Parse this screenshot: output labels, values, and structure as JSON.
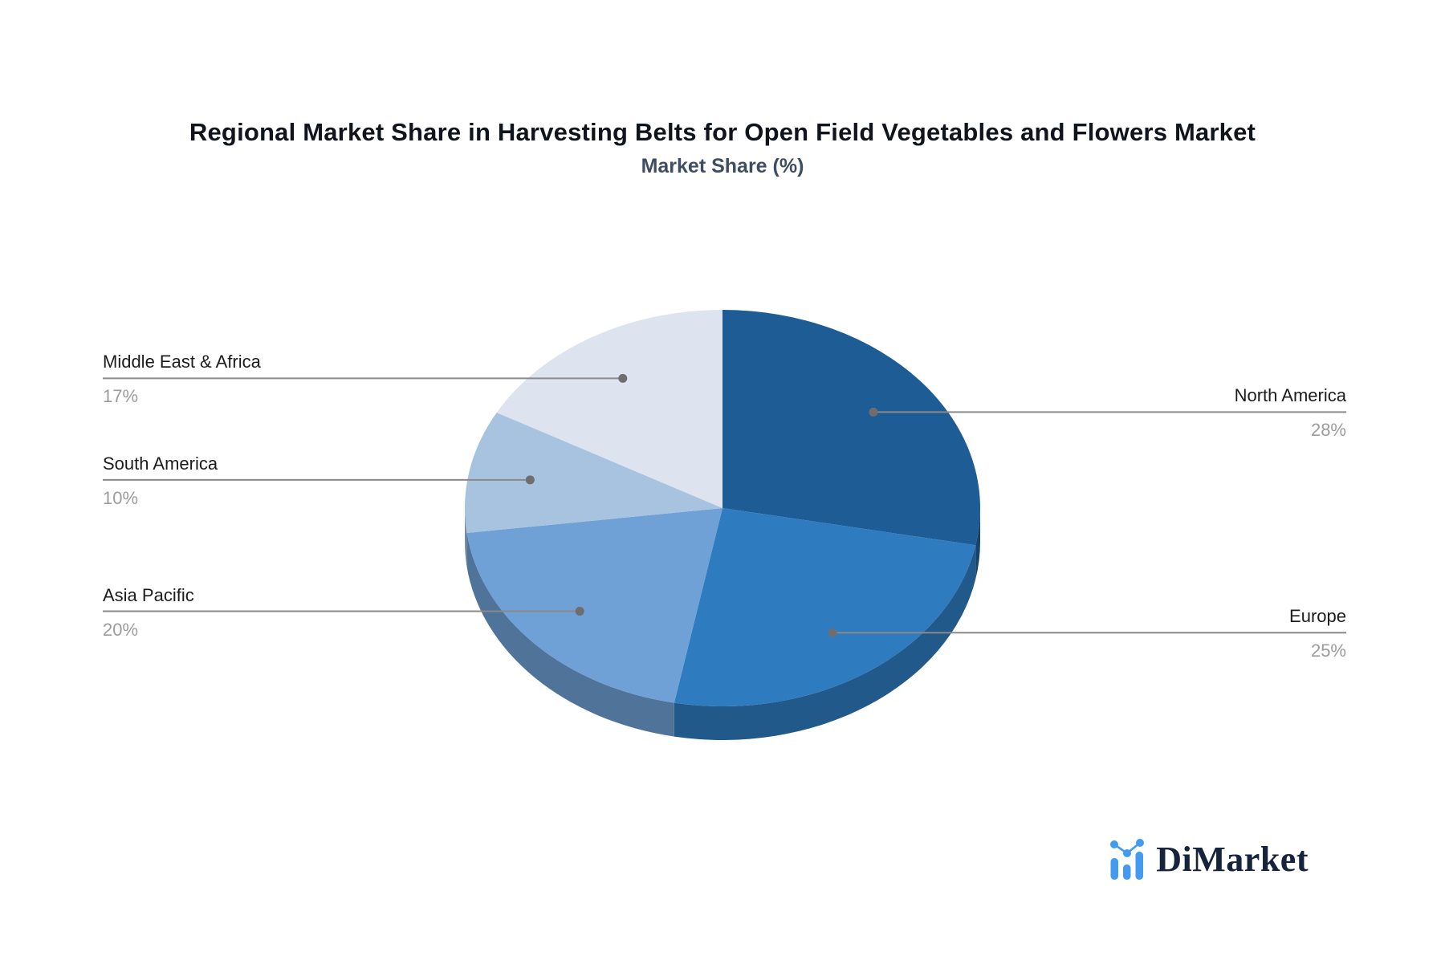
{
  "header": {
    "title": "Regional Market Share in Harvesting Belts for Open Field Vegetables and Flowers Market",
    "subtitle": "Market Share (%)"
  },
  "chart_data": {
    "type": "pie",
    "title": "Regional Market Share in Harvesting Belts for Open Field Vegetables and Flowers Market",
    "subtitle": "Market Share (%)",
    "unit": "%",
    "effect": "3d",
    "start_angle": "top",
    "direction": "clockwise",
    "legend_position": "callouts",
    "slices": [
      {
        "label": "North America",
        "value": 28,
        "display": "28%",
        "color": "#1E5C96",
        "callout_side": "right"
      },
      {
        "label": "Europe",
        "value": 25,
        "display": "25%",
        "color": "#2E7BC0",
        "callout_side": "right"
      },
      {
        "label": "Asia Pacific",
        "value": 20,
        "display": "20%",
        "color": "#6FA0D6",
        "callout_side": "left"
      },
      {
        "label": "South America",
        "value": 10,
        "display": "10%",
        "color": "#A8C3DF",
        "callout_side": "left"
      },
      {
        "label": "Middle East & Africa",
        "value": 17,
        "display": "17%",
        "color": "#DDE4F0",
        "callout_side": "left"
      }
    ],
    "leader_line_color": "#8A8A8A",
    "leader_dot_color": "#6E6E6E"
  },
  "branding": {
    "logo_text": "DiMarket",
    "logo_icon": "bar-chart-logo-icon",
    "logo_text_color": "#16233C",
    "logo_accent_color": "#429BF0"
  }
}
